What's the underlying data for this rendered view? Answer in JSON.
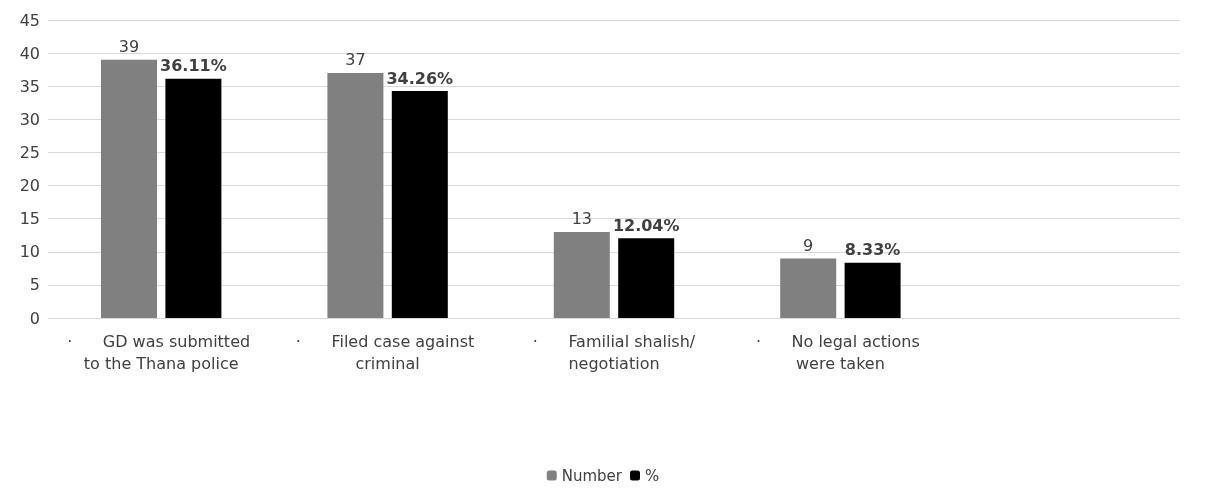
{
  "chart_data": {
    "type": "bar",
    "categories": [
      "·      GD was submitted to the Thana police",
      "·      Filed case against criminal",
      "·      Familial shalish/negotiation",
      "·      No legal actions were taken",
      null
    ],
    "series": [
      {
        "name": "Number",
        "color": "#808080",
        "values": [
          39,
          37,
          13,
          9,
          null
        ],
        "value_labels": [
          "39",
          "37",
          "13",
          "9",
          null
        ]
      },
      {
        "name": "%",
        "color": "#000000",
        "values": [
          36.11,
          34.26,
          12.04,
          8.33,
          null
        ],
        "value_labels": [
          "36.11%",
          "34.26%",
          "12.04%",
          "8.33%",
          null
        ]
      }
    ],
    "ylim": [
      0,
      45
    ],
    "yticks": [
      0,
      5,
      10,
      15,
      20,
      25,
      30,
      35,
      40,
      45
    ],
    "grid": "y",
    "legend": "bottom"
  }
}
